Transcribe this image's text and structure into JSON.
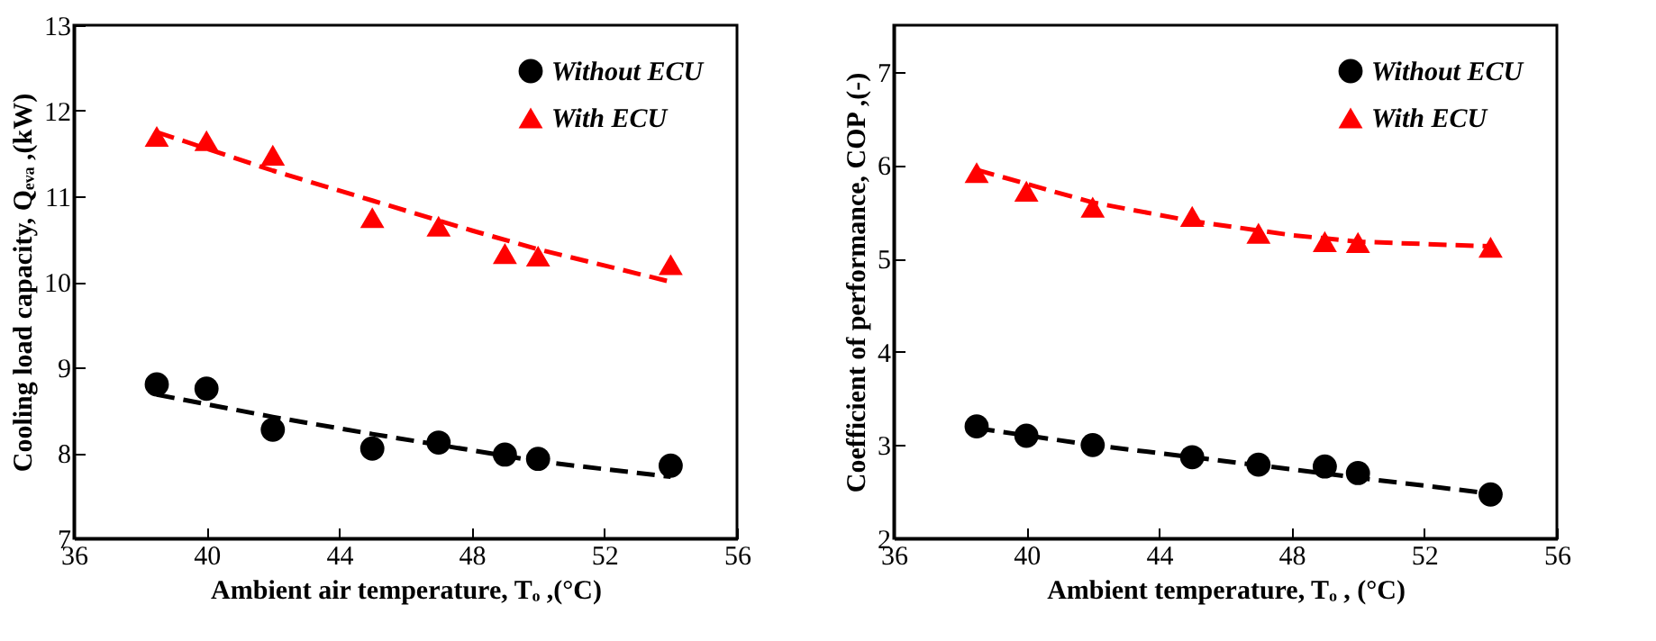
{
  "chart_data": [
    {
      "type": "scatter",
      "xlabel": "Ambient air temperature,  Tₒ ,(°C)",
      "ylabel": "Cooling load capacity, Qₑᵥₐ ,(kW)",
      "xlim": [
        36,
        56
      ],
      "xticks": [
        36,
        40,
        44,
        48,
        52,
        56
      ],
      "ylim": [
        7,
        13
      ],
      "yticks": [
        7,
        8,
        9,
        10,
        11,
        12,
        13
      ],
      "grid": false,
      "legend": "top right",
      "series": [
        {
          "name": "Without ECU",
          "color": "#000000",
          "marker": "circle",
          "x": [
            38.5,
            40,
            42,
            45,
            47,
            49,
            50,
            54
          ],
          "values": [
            8.8,
            8.75,
            8.27,
            8.05,
            8.12,
            7.98,
            7.93,
            7.85
          ]
        },
        {
          "name": "With ECU",
          "color": "#ff0000",
          "marker": "triangle",
          "x": [
            38.5,
            40,
            42,
            45,
            47,
            49,
            50,
            54
          ],
          "values": [
            11.7,
            11.65,
            11.48,
            10.75,
            10.65,
            10.33,
            10.3,
            10.2
          ]
        },
        {
          "type": "line",
          "color": "#000000",
          "line_style": "dashed",
          "x": [
            38.5,
            42,
            45,
            48,
            50,
            54
          ],
          "values": [
            8.68,
            8.42,
            8.22,
            8.03,
            7.9,
            7.72
          ]
        },
        {
          "type": "line",
          "color": "#ff0000",
          "line_style": "dashed",
          "x": [
            38.5,
            42,
            45,
            48,
            50,
            54
          ],
          "values": [
            11.75,
            11.3,
            10.95,
            10.6,
            10.38,
            10.0
          ]
        }
      ]
    },
    {
      "type": "scatter",
      "xlabel": "Ambient temperature, Tₒ , (°C)",
      "ylabel": "Coefficient of performance,  COP ,(-)",
      "xlim": [
        36,
        56
      ],
      "xticks": [
        36,
        40,
        44,
        48,
        52,
        56
      ],
      "ylim": [
        2,
        7.5
      ],
      "yticks": [
        2,
        3,
        4,
        5,
        6,
        7
      ],
      "grid": false,
      "legend": "top right",
      "series": [
        {
          "name": "Without ECU",
          "color": "#000000",
          "marker": "circle",
          "x": [
            38.5,
            40,
            42,
            45,
            47,
            49,
            50,
            54
          ],
          "values": [
            3.2,
            3.1,
            3.0,
            2.87,
            2.79,
            2.77,
            2.7,
            2.47
          ]
        },
        {
          "name": "With ECU",
          "color": "#ff0000",
          "marker": "triangle",
          "x": [
            38.5,
            40,
            42,
            45,
            47,
            49,
            50,
            54
          ],
          "values": [
            5.92,
            5.72,
            5.55,
            5.45,
            5.27,
            5.18,
            5.17,
            5.12
          ]
        },
        {
          "type": "line",
          "color": "#000000",
          "line_style": "dashed",
          "x": [
            38.5,
            42,
            45,
            48,
            50,
            54
          ],
          "values": [
            3.18,
            3.0,
            2.87,
            2.74,
            2.65,
            2.48
          ]
        },
        {
          "type": "line",
          "color": "#ff0000",
          "line_style": "dashed",
          "x": [
            38.5,
            42,
            45,
            48,
            50,
            54
          ],
          "values": [
            5.95,
            5.6,
            5.4,
            5.25,
            5.18,
            5.13
          ]
        }
      ]
    }
  ]
}
